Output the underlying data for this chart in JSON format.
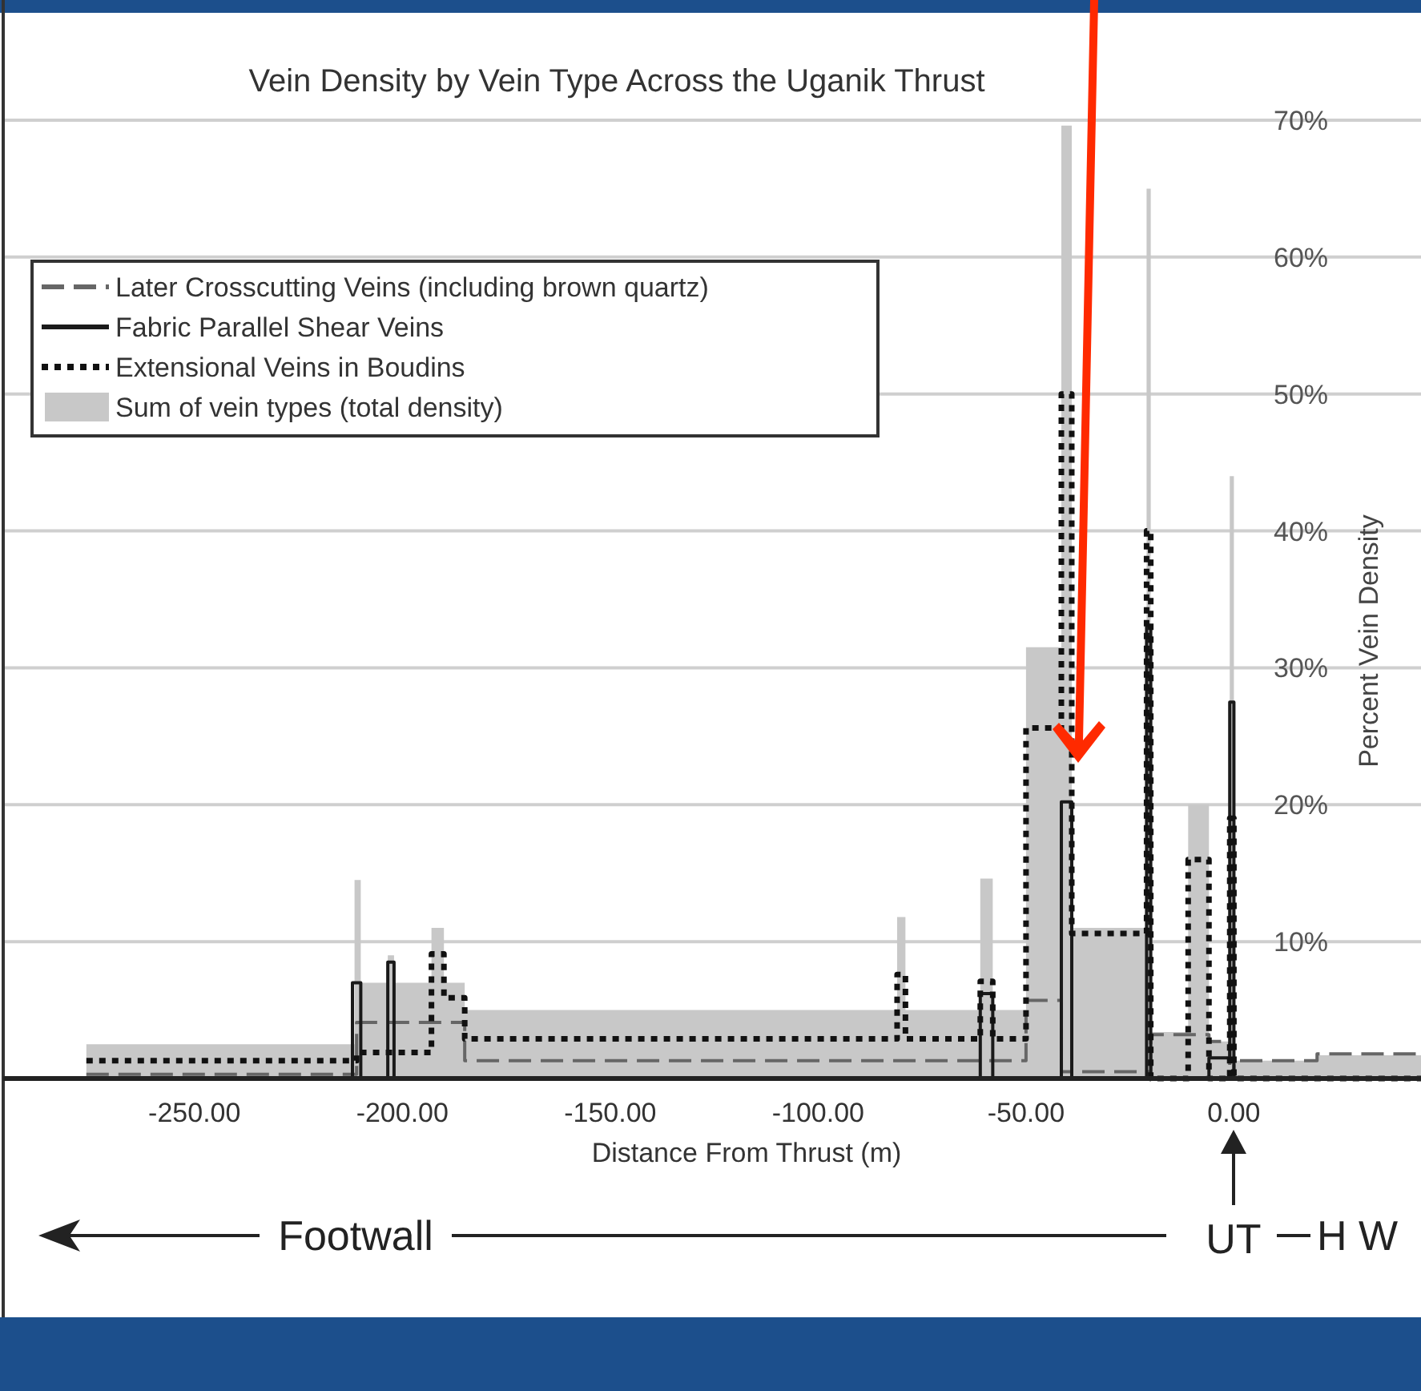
{
  "chart_data": {
    "type": "step",
    "title": "Vein Density by Vein Type Across the Uganik Thrust",
    "xlabel": "Distance From Thrust (m)",
    "ylabel": "Percent Vein Density",
    "series": [
      {
        "name": "Later Crosscutting Veins (including brown quartz)",
        "color": "#666666",
        "line_style": "dashed",
        "x": [
          -276,
          -211,
          -185,
          -50,
          -41.5,
          -20,
          -6,
          -1,
          0,
          20,
          45
        ],
        "values": [
          0.3,
          4.1,
          1.3,
          5.7,
          0.5,
          3.2,
          2.7,
          0,
          1.3,
          1.8,
          1.8
        ]
      },
      {
        "name": "Fabric Parallel Shear Veins",
        "color": "#1a1a1a",
        "line_style": "solid",
        "x": [
          -276,
          -212,
          -210,
          -203.5,
          -202,
          -61,
          -58,
          -41.5,
          -39,
          -21,
          -20,
          -6,
          -1,
          0,
          45
        ],
        "values": [
          0,
          7,
          0,
          8.5,
          0,
          6.2,
          0,
          20.2,
          0,
          33,
          0,
          1.5,
          27.5,
          0,
          0
        ]
      },
      {
        "name": "Extensional Veins in Boudins",
        "color": "#111111",
        "line_style": "dotted",
        "x": [
          -276,
          -211,
          -193,
          -190,
          -185,
          -81,
          -79,
          -61,
          -58,
          -50,
          -41.5,
          -39,
          -21,
          -20,
          -11,
          -6,
          -1,
          0,
          45
        ],
        "values": [
          1.3,
          1.9,
          9.1,
          5.9,
          2.9,
          7.6,
          2.9,
          7.1,
          2.9,
          25.6,
          50,
          10.6,
          40,
          0,
          16,
          0,
          19,
          0,
          0
        ]
      },
      {
        "name": "Sum of vein types (total density)",
        "type": "area",
        "color": "#c8c8c8",
        "x": [
          -276,
          -211.5,
          -210,
          -203.5,
          -202,
          -193,
          -190,
          -185,
          -81,
          -79,
          -61,
          -58,
          -50,
          -41.5,
          -39,
          -21,
          -20,
          -11,
          -6,
          -1,
          0,
          20,
          45
        ],
        "values": [
          2.5,
          14.5,
          7,
          9,
          7,
          11,
          7,
          5,
          11.8,
          5,
          14.6,
          5,
          31.5,
          69.6,
          11,
          65,
          3.4,
          20,
          2.7,
          44,
          1.3,
          1.7,
          1.7
        ]
      }
    ],
    "xlim": [
      -296,
      45
    ],
    "xticks": [
      {
        "value": -250,
        "label": "-250.00"
      },
      {
        "value": -200,
        "label": "-200.00"
      },
      {
        "value": -150,
        "label": "-150.00"
      },
      {
        "value": -100,
        "label": "-100.00"
      },
      {
        "value": -50,
        "label": "-50.00"
      },
      {
        "value": 0,
        "label": "0.00"
      }
    ],
    "ylim": [
      0,
      70
    ],
    "yticks": [
      {
        "value": 0,
        "label": null
      },
      {
        "value": 10,
        "label": "10%"
      },
      {
        "value": 20,
        "label": "20%"
      },
      {
        "value": 30,
        "label": "30%"
      },
      {
        "value": 40,
        "label": "40%"
      },
      {
        "value": 50,
        "label": "50%"
      },
      {
        "value": 60,
        "label": "60%"
      },
      {
        "value": 70,
        "label": "70%"
      }
    ],
    "grid": "y",
    "legend": "top left",
    "annotations": [
      "Footwall",
      "UT",
      "H W"
    ]
  }
}
